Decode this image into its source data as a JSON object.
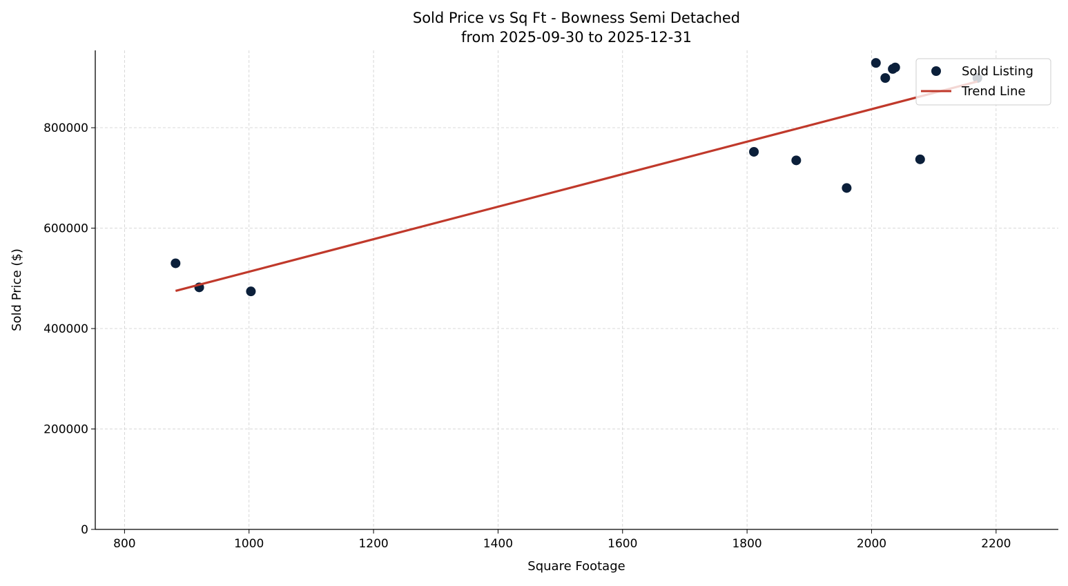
{
  "chart_data": {
    "type": "scatter",
    "title": "Sold Price vs Sq Ft - Bowness Semi Detached",
    "subtitle": "from 2025-09-30 to 2025-12-31",
    "xlabel": "Square Footage",
    "ylabel": "Sold Price ($)",
    "xlim": [
      753,
      2300
    ],
    "ylim": [
      0,
      954000
    ],
    "xticks": [
      800,
      1000,
      1200,
      1400,
      1600,
      1800,
      2000,
      2200
    ],
    "yticks": [
      0,
      200000,
      400000,
      600000,
      800000
    ],
    "grid": true,
    "legend_position": "top-right",
    "series": [
      {
        "name": "Sold Listing",
        "kind": "scatter",
        "color": "#0b1f3a",
        "points": [
          [
            882,
            530000
          ],
          [
            920,
            482000
          ],
          [
            1003,
            474000
          ],
          [
            1811,
            752000
          ],
          [
            1879,
            735000
          ],
          [
            1960,
            680000
          ],
          [
            2007,
            929000
          ],
          [
            2022,
            899000
          ],
          [
            2034,
            917000
          ],
          [
            2038,
            920000
          ],
          [
            2078,
            737000
          ],
          [
            2170,
            899000
          ]
        ]
      },
      {
        "name": "Trend Line",
        "kind": "line",
        "color": "#c0392b",
        "points": [
          [
            882,
            475000
          ],
          [
            2170,
            892000
          ]
        ]
      }
    ]
  }
}
